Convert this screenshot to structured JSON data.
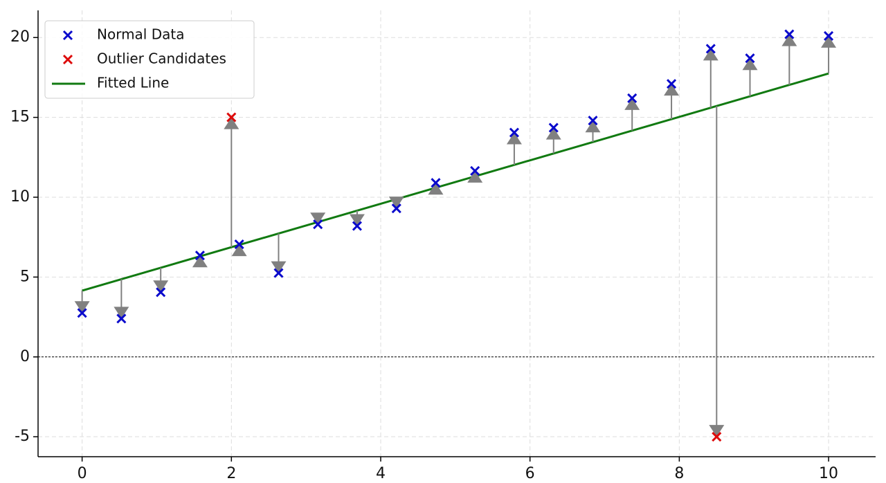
{
  "chart_data": {
    "type": "scatter",
    "series": [
      {
        "name": "Normal Data",
        "color": "#0a0acc",
        "marker": "x",
        "x": [
          0,
          0.526,
          1.053,
          1.579,
          2.105,
          2.632,
          3.158,
          3.684,
          4.211,
          4.737,
          5.263,
          5.789,
          6.316,
          6.842,
          7.368,
          7.895,
          8.421,
          8.947,
          9.474,
          10
        ],
        "values": [
          2.75,
          2.4,
          4.05,
          6.35,
          7.05,
          5.25,
          8.3,
          8.2,
          9.3,
          10.9,
          11.65,
          14.05,
          14.35,
          14.8,
          16.2,
          17.1,
          19.3,
          18.7,
          20.2,
          20.1
        ]
      },
      {
        "name": "Outlier Candidates",
        "color": "#dd0a0a",
        "marker": "x",
        "x": [
          2,
          8.5
        ],
        "values": [
          15,
          -5
        ]
      },
      {
        "name": "Fitted Line",
        "color": "#117a11",
        "marker": "line",
        "x": [
          0,
          10
        ],
        "values": [
          4.15,
          17.75
        ]
      }
    ],
    "residual_color": "#808080",
    "hline": 0,
    "xlim": [
      -0.59,
      10.63
    ],
    "ylim": [
      -6.25,
      21.7
    ],
    "xticks": [
      0,
      2,
      4,
      6,
      8,
      10
    ],
    "yticks": [
      -5,
      0,
      5,
      10,
      15,
      20
    ],
    "grid": true,
    "legend": "upper left"
  }
}
